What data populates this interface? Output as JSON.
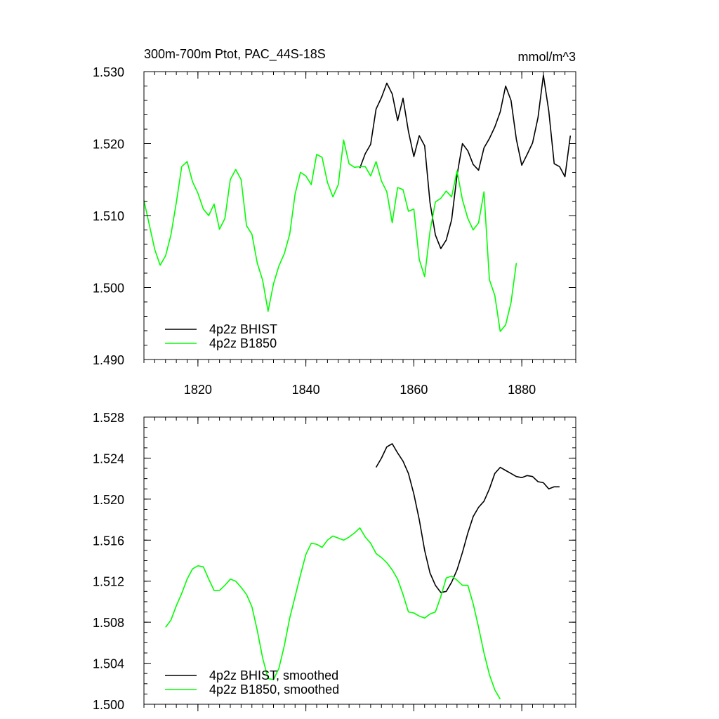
{
  "chart_data": [
    {
      "type": "line",
      "title": "300m-700m Ptot, PAC_44S-18S",
      "units": "mmol/m^3",
      "xlabel": "",
      "ylabel": "",
      "xlim": [
        1810,
        1890
      ],
      "ylim": [
        1.49,
        1.53
      ],
      "x_ticks": [
        {
          "value": 1820,
          "label": "1820"
        },
        {
          "value": 1840,
          "label": "1840"
        },
        {
          "value": 1860,
          "label": "1860"
        },
        {
          "value": 1880,
          "label": "1880"
        }
      ],
      "y_ticks": [
        {
          "value": 1.49,
          "label": "1.490"
        },
        {
          "value": 1.5,
          "label": "1.500"
        },
        {
          "value": 1.51,
          "label": "1.510"
        },
        {
          "value": 1.52,
          "label": "1.520"
        },
        {
          "value": 1.53,
          "label": "1.530"
        }
      ],
      "grid": false,
      "legend_position": "bottom-left",
      "series": [
        {
          "name": "4p2z BHIST",
          "color": "#000000",
          "x": [
            1850,
            1851,
            1852,
            1853,
            1854,
            1855,
            1856,
            1857,
            1858,
            1859,
            1860,
            1861,
            1862,
            1863,
            1864,
            1865,
            1866,
            1867,
            1868,
            1869,
            1870,
            1871,
            1872,
            1873,
            1874,
            1875,
            1876,
            1877,
            1878,
            1879,
            1880,
            1881,
            1882,
            1883,
            1884,
            1885,
            1886,
            1887,
            1888,
            1889
          ],
          "y": [
            1.5166,
            1.5186,
            1.5199,
            1.5248,
            1.5264,
            1.5284,
            1.5269,
            1.5232,
            1.5263,
            1.5217,
            1.5182,
            1.5211,
            1.5197,
            1.5118,
            1.5073,
            1.5054,
            1.5066,
            1.5094,
            1.5156,
            1.52,
            1.519,
            1.5171,
            1.5163,
            1.5194,
            1.5207,
            1.5223,
            1.5244,
            1.528,
            1.526,
            1.5206,
            1.517,
            1.5185,
            1.5201,
            1.5236,
            1.5295,
            1.5245,
            1.5172,
            1.5168,
            1.5154,
            1.5211
          ]
        },
        {
          "name": "4p2z B1850",
          "color": "#00ff00",
          "x": [
            1810,
            1811,
            1812,
            1813,
            1814,
            1815,
            1816,
            1817,
            1818,
            1819,
            1820,
            1821,
            1822,
            1823,
            1824,
            1825,
            1826,
            1827,
            1828,
            1829,
            1830,
            1831,
            1832,
            1833,
            1834,
            1835,
            1836,
            1837,
            1838,
            1839,
            1840,
            1841,
            1842,
            1843,
            1844,
            1845,
            1846,
            1847,
            1848,
            1849,
            1850,
            1851,
            1852,
            1853,
            1854,
            1855,
            1856,
            1857,
            1858,
            1859,
            1860,
            1861,
            1862,
            1863,
            1864,
            1865,
            1866,
            1867,
            1868,
            1869,
            1870,
            1871,
            1872,
            1873,
            1874,
            1875,
            1876,
            1877,
            1878,
            1879
          ],
          "y": [
            1.5121,
            1.5087,
            1.5053,
            1.5031,
            1.5044,
            1.5073,
            1.5118,
            1.5168,
            1.5175,
            1.5147,
            1.5131,
            1.5109,
            1.51,
            1.5116,
            1.5081,
            1.5096,
            1.515,
            1.5164,
            1.515,
            1.5086,
            1.5074,
            1.5034,
            1.501,
            1.4967,
            1.5005,
            1.503,
            1.5047,
            1.5074,
            1.513,
            1.516,
            1.5155,
            1.5143,
            1.5185,
            1.5181,
            1.5146,
            1.5126,
            1.5143,
            1.5205,
            1.5172,
            1.5167,
            1.5168,
            1.5168,
            1.5155,
            1.5175,
            1.5148,
            1.5133,
            1.509,
            1.5139,
            1.5136,
            1.5106,
            1.5109,
            1.5039,
            1.5015,
            1.5078,
            1.5119,
            1.5124,
            1.5134,
            1.5126,
            1.5162,
            1.5122,
            1.5096,
            1.508,
            1.509,
            1.5133,
            1.5011,
            1.4989,
            1.4939,
            1.4948,
            1.4979,
            1.5034
          ]
        }
      ]
    },
    {
      "type": "line",
      "title": "",
      "xlabel": "",
      "ylabel": "",
      "xlim": [
        1810,
        1890
      ],
      "ylim": [
        1.5,
        1.528
      ],
      "x_ticks": [
        {
          "value": 1820,
          "label": ""
        },
        {
          "value": 1840,
          "label": ""
        },
        {
          "value": 1860,
          "label": ""
        },
        {
          "value": 1880,
          "label": ""
        }
      ],
      "y_ticks": [
        {
          "value": 1.5,
          "label": "1.500"
        },
        {
          "value": 1.504,
          "label": "1.504"
        },
        {
          "value": 1.508,
          "label": "1.508"
        },
        {
          "value": 1.512,
          "label": "1.512"
        },
        {
          "value": 1.516,
          "label": "1.516"
        },
        {
          "value": 1.52,
          "label": "1.520"
        },
        {
          "value": 1.524,
          "label": "1.524"
        },
        {
          "value": 1.528,
          "label": "1.528"
        }
      ],
      "grid": false,
      "legend_position": "bottom-left",
      "series": [
        {
          "name": "4p2z BHIST, smoothed",
          "color": "#000000",
          "x": [
            1853,
            1854,
            1855,
            1856,
            1857,
            1858,
            1859,
            1860,
            1861,
            1862,
            1863,
            1864,
            1865,
            1866,
            1867,
            1868,
            1869,
            1870,
            1871,
            1872,
            1873,
            1874,
            1875,
            1876,
            1877,
            1878,
            1879,
            1880,
            1881,
            1882,
            1883,
            1884,
            1885,
            1886,
            1887
          ],
          "y": [
            1.5231,
            1.524,
            1.5251,
            1.5254,
            1.5245,
            1.5237,
            1.5225,
            1.5205,
            1.518,
            1.515,
            1.5128,
            1.5116,
            1.5109,
            1.511,
            1.5119,
            1.5131,
            1.5148,
            1.5167,
            1.5183,
            1.5192,
            1.5198,
            1.521,
            1.5225,
            1.5231,
            1.5228,
            1.5225,
            1.5222,
            1.5221,
            1.5223,
            1.5222,
            1.5217,
            1.5216,
            1.521,
            1.5212,
            1.5212
          ]
        },
        {
          "name": "4p2z B1850, smoothed",
          "color": "#00ff00",
          "x": [
            1814,
            1815,
            1816,
            1817,
            1818,
            1819,
            1820,
            1821,
            1822,
            1823,
            1824,
            1825,
            1826,
            1827,
            1828,
            1829,
            1830,
            1831,
            1832,
            1833,
            1834,
            1835,
            1836,
            1837,
            1838,
            1839,
            1840,
            1841,
            1842,
            1843,
            1844,
            1845,
            1846,
            1847,
            1848,
            1849,
            1850,
            1851,
            1852,
            1853,
            1854,
            1855,
            1856,
            1857,
            1858,
            1859,
            1860,
            1861,
            1862,
            1863,
            1864,
            1865,
            1866,
            1867,
            1868,
            1869,
            1870,
            1871,
            1872,
            1873,
            1874,
            1875,
            1876
          ],
          "y": [
            1.5075,
            1.5082,
            1.5096,
            1.5108,
            1.5122,
            1.5132,
            1.5135,
            1.5134,
            1.5122,
            1.5111,
            1.5111,
            1.5116,
            1.5122,
            1.512,
            1.5114,
            1.5107,
            1.5095,
            1.5072,
            1.5045,
            1.5025,
            1.5024,
            1.5035,
            1.5057,
            1.5084,
            1.5105,
            1.5126,
            1.5146,
            1.5157,
            1.5156,
            1.5153,
            1.516,
            1.5164,
            1.5162,
            1.516,
            1.5163,
            1.5167,
            1.5172,
            1.5163,
            1.5157,
            1.5147,
            1.5143,
            1.5138,
            1.5131,
            1.5122,
            1.5107,
            1.509,
            1.5089,
            1.5086,
            1.5084,
            1.5088,
            1.509,
            1.5105,
            1.5123,
            1.5125,
            1.5121,
            1.5116,
            1.5116,
            1.5098,
            1.5075,
            1.505,
            1.5029,
            1.5014,
            1.5005
          ]
        }
      ]
    }
  ]
}
